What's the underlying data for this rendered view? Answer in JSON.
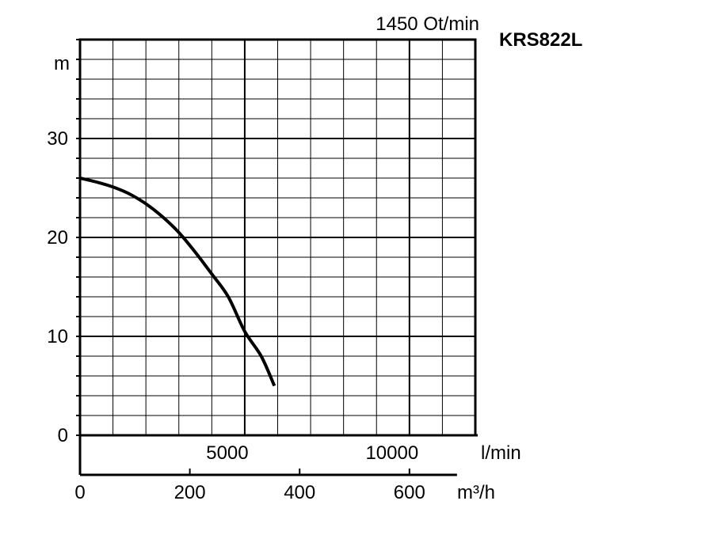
{
  "chart_data": {
    "type": "line",
    "title": "KRS822L",
    "subtitle": "1450 Ot/min",
    "ylabel": "m",
    "ylim": [
      0,
      40
    ],
    "y_ticks": [
      0,
      10,
      20,
      30
    ],
    "xlim_lmin": [
      0,
      12000
    ],
    "x_ticks_lmin": [
      5000,
      10000
    ],
    "x_unit_lmin": "l/min",
    "x_ticks_m3h": [
      0,
      200,
      400,
      600
    ],
    "x_unit_m3h": "m³/h",
    "grid": true,
    "series": [
      {
        "x": [
          0,
          500,
          1000,
          1500,
          2000,
          2500,
          3000,
          3500,
          4000,
          4500,
          5000,
          5500,
          5900
        ],
        "y": [
          26,
          25.6,
          25.1,
          24.4,
          23.4,
          22.1,
          20.5,
          18.5,
          16.3,
          14.0,
          10.5,
          8.0,
          5.0
        ]
      }
    ]
  }
}
